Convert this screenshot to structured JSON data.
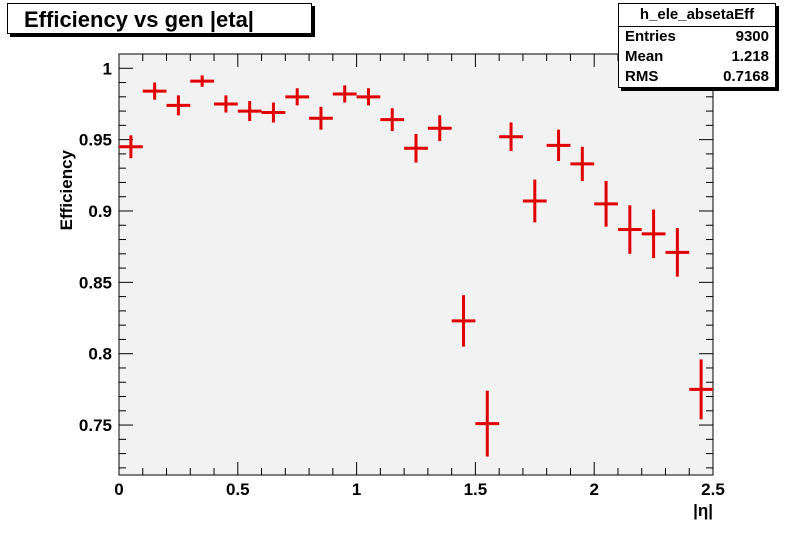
{
  "title": "Efficiency vs gen |eta|",
  "stats": {
    "name": "h_ele_absetaEff",
    "rows": [
      {
        "label": "Entries",
        "value": "9300"
      },
      {
        "label": "Mean",
        "value": "1.218"
      },
      {
        "label": "RMS",
        "value": "0.7168"
      }
    ]
  },
  "chart_data": {
    "type": "scatter",
    "title": "Efficiency vs gen |eta|",
    "xlabel": "|η|",
    "ylabel": "Efficiency",
    "xlim": [
      0,
      2.5
    ],
    "ylim": [
      0.715,
      1.01
    ],
    "x_ticks": [
      "0",
      "0.5",
      "1",
      "1.5",
      "2",
      "2.5"
    ],
    "y_ticks": [
      "0.75",
      "0.8",
      "0.85",
      "0.9",
      "0.95",
      "1"
    ],
    "x_tick_values": [
      0,
      0.5,
      1,
      1.5,
      2,
      2.5
    ],
    "y_tick_values": [
      0.75,
      0.8,
      0.85,
      0.9,
      0.95,
      1.0
    ],
    "grid": false,
    "bin_half_width": 0.05,
    "marker_color": "#e00000",
    "background_color": "#f2f2f2",
    "series": [
      {
        "x": [
          0.05,
          0.15,
          0.25,
          0.35,
          0.45,
          0.55,
          0.65,
          0.75,
          0.85,
          0.95,
          1.05,
          1.15,
          1.25,
          1.35,
          1.45,
          1.55,
          1.65,
          1.75,
          1.85,
          1.95,
          2.05,
          2.15,
          2.25,
          2.35,
          2.45
        ],
        "y": [
          0.945,
          0.984,
          0.974,
          0.991,
          0.975,
          0.97,
          0.969,
          0.98,
          0.965,
          0.982,
          0.98,
          0.964,
          0.944,
          0.958,
          0.823,
          0.751,
          0.952,
          0.907,
          0.946,
          0.933,
          0.905,
          0.887,
          0.884,
          0.871,
          0.775
        ],
        "err": [
          0.008,
          0.006,
          0.007,
          0.004,
          0.006,
          0.007,
          0.007,
          0.006,
          0.008,
          0.006,
          0.006,
          0.008,
          0.01,
          0.009,
          0.018,
          0.023,
          0.01,
          0.015,
          0.011,
          0.012,
          0.016,
          0.017,
          0.017,
          0.017,
          0.021
        ]
      }
    ]
  }
}
